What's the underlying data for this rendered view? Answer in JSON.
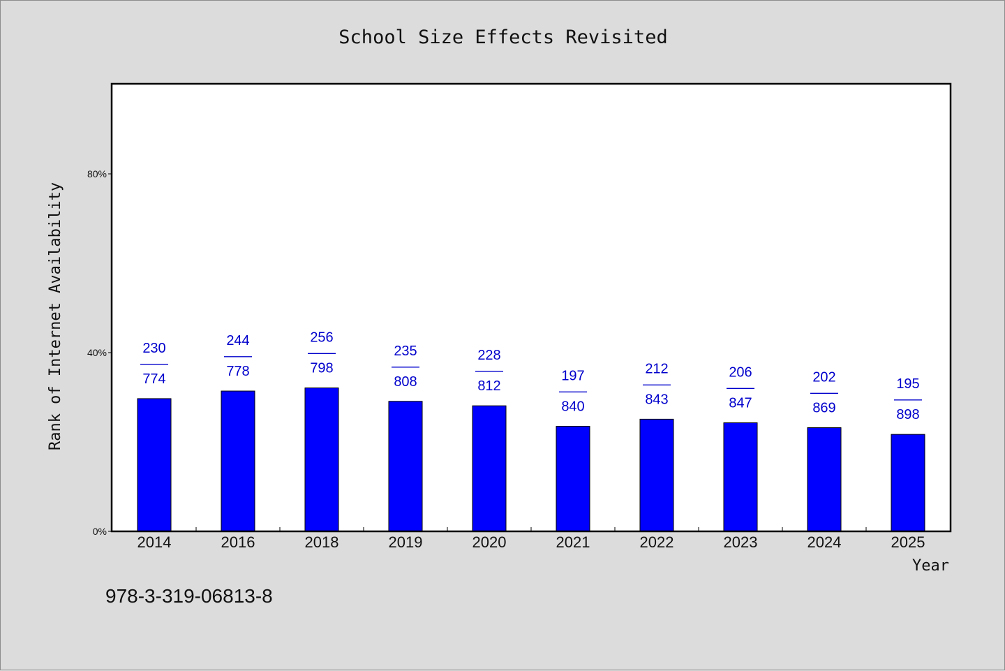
{
  "chart_data": {
    "type": "bar",
    "title": "School Size Effects Revisited",
    "xlabel": "Year",
    "ylabel": "Rank of Internet Availability",
    "categories": [
      "2014",
      "2016",
      "2018",
      "2019",
      "2020",
      "2021",
      "2022",
      "2023",
      "2024",
      "2025"
    ],
    "values": [
      0.297,
      0.314,
      0.321,
      0.291,
      0.281,
      0.235,
      0.251,
      0.243,
      0.232,
      0.217
    ],
    "value_labels": [
      {
        "top": "230",
        "bottom": "774"
      },
      {
        "top": "244",
        "bottom": "778"
      },
      {
        "top": "256",
        "bottom": "798"
      },
      {
        "top": "235",
        "bottom": "808"
      },
      {
        "top": "228",
        "bottom": "812"
      },
      {
        "top": "197",
        "bottom": "840"
      },
      {
        "top": "212",
        "bottom": "843"
      },
      {
        "top": "206",
        "bottom": "847"
      },
      {
        "top": "202",
        "bottom": "869"
      },
      {
        "top": "195",
        "bottom": "898"
      }
    ],
    "label_separator": "——",
    "ylim": [
      0,
      1
    ],
    "yticks": [
      0,
      0.4,
      0.8
    ],
    "ytick_labels": [
      "0%",
      "40%",
      "80%"
    ],
    "grid": false,
    "bar_color": "#0000ff",
    "label_color": "#0000cc"
  },
  "footer_text": "978-3-319-06813-8"
}
